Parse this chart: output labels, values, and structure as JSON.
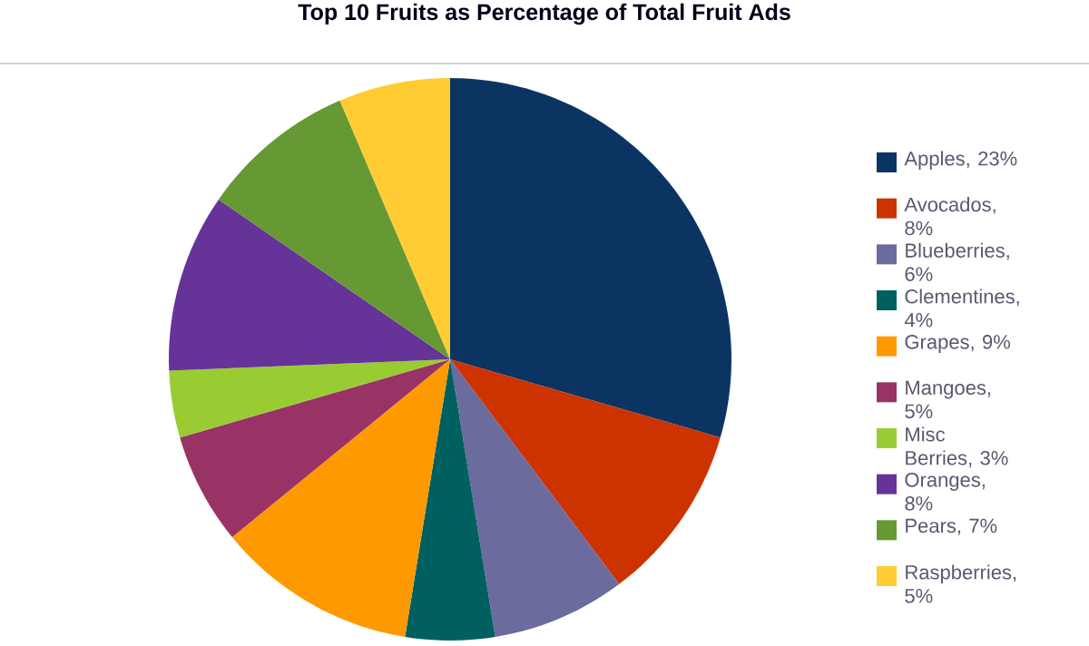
{
  "chart_data": {
    "type": "pie",
    "title": "Top 10 Fruits as Percentage of Total Fruit Ads",
    "categories": [
      "Apples, 23%",
      "Avocados, 8%",
      "Blueberries, 6%",
      "Clementines, 4%",
      "Grapes, 9%",
      "Mangoes, 5%",
      "Misc Berries, 3%",
      "Oranges, 8%",
      "Pears, 7%",
      "Raspberries, 5%"
    ],
    "values": [
      23,
      8,
      6,
      4,
      9,
      5,
      3,
      8,
      7,
      5
    ],
    "colors": [
      "#0b3463",
      "#cc3300",
      "#6b6b9e",
      "#006060",
      "#ff9900",
      "#993366",
      "#99cc33",
      "#663399",
      "#669933",
      "#ffcc33"
    ],
    "legend": "right"
  }
}
